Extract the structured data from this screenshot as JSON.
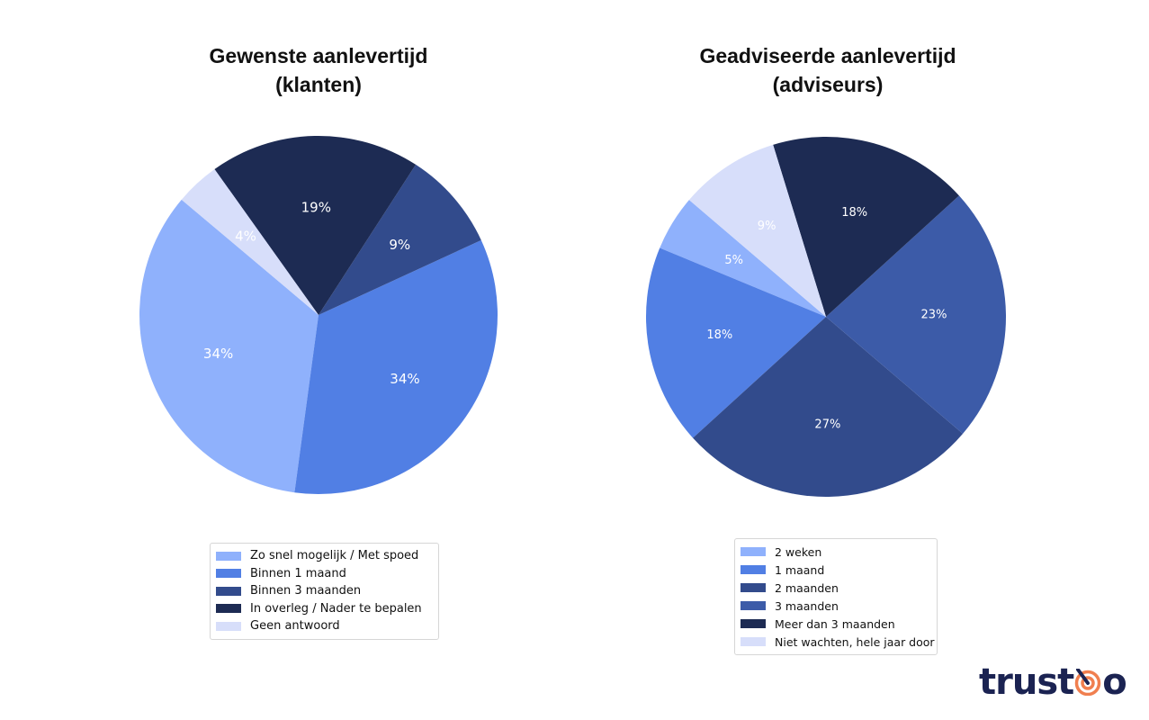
{
  "chart_data": [
    {
      "type": "pie",
      "title": "Gewenste aanlevertijd (klanten)",
      "title_lines": [
        "Gewenste aanlevertijd",
        "(klanten)"
      ],
      "categories": [
        "Zo snel mogelijk / Met spoed",
        "Binnen 1 maand",
        "Binnen 3 maanden",
        "In overleg / Nader te bepalen",
        "Geen antwoord"
      ],
      "values": [
        34,
        34,
        9,
        19,
        4
      ],
      "labels": [
        "34%",
        "34%",
        "9%",
        "19%",
        "4%"
      ],
      "colors": [
        "#8fb1fc",
        "#517fe4",
        "#324b8c",
        "#1d2b53",
        "#d7defa"
      ],
      "start_angle_deg": 139.9,
      "direction": "counterclockwise",
      "legend_position": "bottom"
    },
    {
      "type": "pie",
      "title": "Geadviseerde aanlevertijd (adviseurs)",
      "title_lines": [
        "Geadviseerde aanlevertijd",
        "(adviseurs)"
      ],
      "categories": [
        "2 weken",
        "1 maand",
        "2 maanden",
        "3 maanden",
        "Meer dan 3 maanden",
        "Niet wachten, hele jaar door"
      ],
      "values": [
        5,
        18,
        27,
        23,
        18,
        9
      ],
      "labels": [
        "5%",
        "18%",
        "27%",
        "23%",
        "18%",
        "9%"
      ],
      "colors": [
        "#8fb1fc",
        "#517fe4",
        "#324b8c",
        "#3c5ba8",
        "#1d2b53",
        "#d7defa"
      ],
      "start_angle_deg": 139.5,
      "direction": "counterclockwise",
      "legend_position": "bottom"
    }
  ],
  "left": {
    "title_line1": "Gewenste aanlevertijd",
    "title_line2": "(klanten)",
    "legend": [
      "Zo snel mogelijk / Met spoed",
      "Binnen 1 maand",
      "Binnen 3 maanden",
      "In overleg / Nader te bepalen",
      "Geen antwoord"
    ]
  },
  "right": {
    "title_line1": "Geadviseerde aanlevertijd",
    "title_line2": "(adviseurs)",
    "legend": [
      "2 weken",
      "1 maand",
      "2 maanden",
      "3 maanden",
      "Meer dan 3 maanden",
      "Niet wachten, hele jaar door"
    ]
  },
  "logo": {
    "text_before": "trust",
    "text_after": "o",
    "icon": "target-icon",
    "text_color": "#1b2352",
    "accent_color": "#f07f4f"
  }
}
